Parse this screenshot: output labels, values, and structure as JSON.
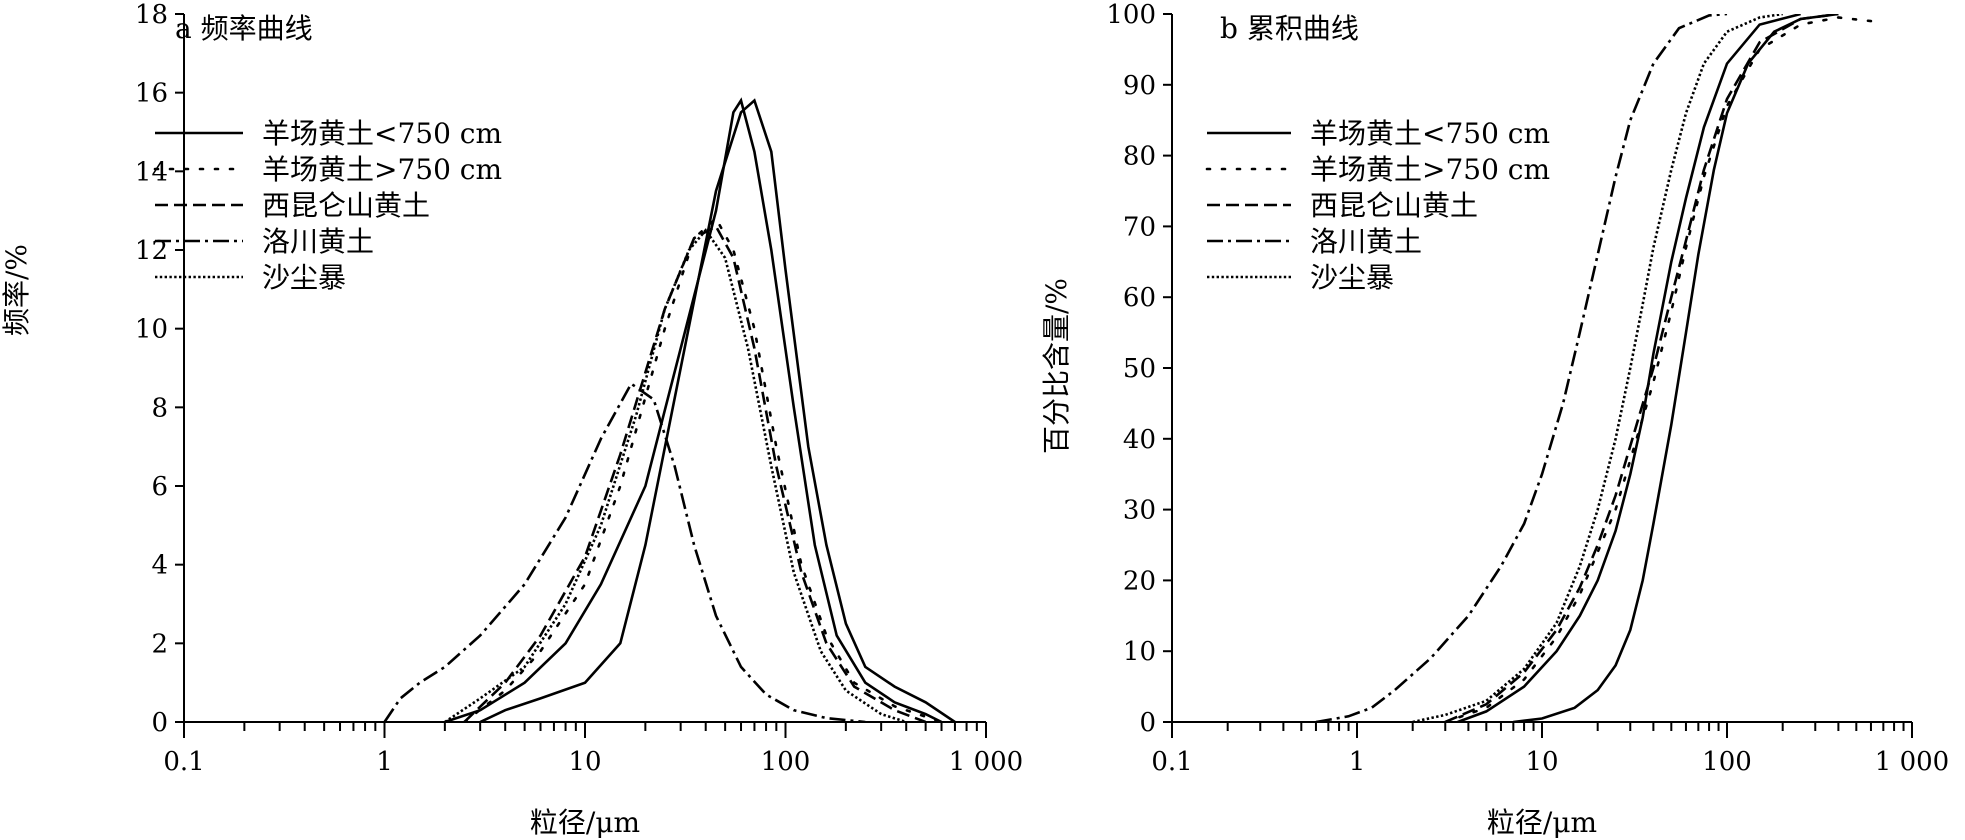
{
  "chart_data": [
    {
      "type": "line",
      "panel": "a",
      "title": "a 频率曲线",
      "xlabel": "粒径/μm",
      "ylabel": "频率/%",
      "xscale": "log",
      "xlim": [
        0.1,
        1000
      ],
      "ylim": [
        0,
        18
      ],
      "xticks": [
        0.1,
        1,
        10,
        100,
        1000
      ],
      "xtick_labels": [
        "0.1",
        "1",
        "10",
        "100",
        "1 000"
      ],
      "yticks": [
        0,
        2,
        4,
        6,
        8,
        10,
        12,
        14,
        16,
        18
      ],
      "ytick_labels": [
        "0",
        "2",
        "4",
        "6",
        "8",
        "10",
        "12",
        "14",
        "16",
        "18"
      ],
      "legend_position": "top-left",
      "series": [
        {
          "name": "羊场黄土<750 cm",
          "style": "solid",
          "points": [
            [
              3,
              0
            ],
            [
              4,
              0.3
            ],
            [
              6,
              0.6
            ],
            [
              10,
              1.0
            ],
            [
              15,
              2.0
            ],
            [
              20,
              4.5
            ],
            [
              30,
              9.0
            ],
            [
              45,
              13.5
            ],
            [
              60,
              15.5
            ],
            [
              70,
              15.8
            ],
            [
              85,
              14.5
            ],
            [
              100,
              11.5
            ],
            [
              130,
              7.0
            ],
            [
              160,
              4.5
            ],
            [
              200,
              2.5
            ],
            [
              250,
              1.4
            ],
            [
              350,
              0.9
            ],
            [
              500,
              0.5
            ],
            [
              700,
              0.0
            ]
          ]
        },
        {
          "name": "羊场黄土<750 cm",
          "style": "solid",
          "points": [
            [
              2,
              0
            ],
            [
              3,
              0.3
            ],
            [
              5,
              1.0
            ],
            [
              8,
              2.0
            ],
            [
              12,
              3.5
            ],
            [
              20,
              6.0
            ],
            [
              30,
              9.5
            ],
            [
              45,
              13.0
            ],
            [
              55,
              15.5
            ],
            [
              60,
              15.8
            ],
            [
              70,
              14.5
            ],
            [
              85,
              12.0
            ],
            [
              110,
              8.0
            ],
            [
              140,
              4.5
            ],
            [
              180,
              2.2
            ],
            [
              250,
              1.0
            ],
            [
              350,
              0.5
            ],
            [
              500,
              0.2
            ],
            [
              600,
              0.0
            ]
          ]
        },
        {
          "name": "羊场黄土>750 cm",
          "style": "dotted",
          "points": [
            [
              2.5,
              0
            ],
            [
              4,
              0.8
            ],
            [
              6,
              1.8
            ],
            [
              10,
              3.5
            ],
            [
              15,
              6.0
            ],
            [
              25,
              10.0
            ],
            [
              35,
              12.3
            ],
            [
              45,
              12.8
            ],
            [
              55,
              12.0
            ],
            [
              70,
              10.0
            ],
            [
              90,
              7.0
            ],
            [
              120,
              4.0
            ],
            [
              160,
              2.2
            ],
            [
              220,
              1.0
            ],
            [
              350,
              0.4
            ],
            [
              600,
              0.0
            ]
          ]
        },
        {
          "name": "西昆仑山黄土",
          "style": "dashed",
          "points": [
            [
              2.5,
              0
            ],
            [
              4,
              1.0
            ],
            [
              6,
              2.2
            ],
            [
              10,
              4.2
            ],
            [
              15,
              6.8
            ],
            [
              25,
              10.5
            ],
            [
              35,
              12.3
            ],
            [
              45,
              12.6
            ],
            [
              55,
              11.8
            ],
            [
              70,
              9.5
            ],
            [
              90,
              6.5
            ],
            [
              120,
              3.8
            ],
            [
              160,
              2.0
            ],
            [
              220,
              0.9
            ],
            [
              350,
              0.3
            ],
            [
              500,
              0.0
            ]
          ]
        },
        {
          "name": "洛川黄土",
          "style": "dashdot",
          "points": [
            [
              1,
              0
            ],
            [
              1.2,
              0.6
            ],
            [
              1.5,
              1.0
            ],
            [
              2,
              1.4
            ],
            [
              3,
              2.2
            ],
            [
              5,
              3.5
            ],
            [
              8,
              5.2
            ],
            [
              12,
              7.2
            ],
            [
              17,
              8.6
            ],
            [
              22,
              8.2
            ],
            [
              28,
              6.5
            ],
            [
              35,
              4.5
            ],
            [
              45,
              2.7
            ],
            [
              60,
              1.4
            ],
            [
              80,
              0.7
            ],
            [
              110,
              0.3
            ],
            [
              160,
              0.1
            ],
            [
              250,
              0.0
            ]
          ]
        },
        {
          "name": "沙尘暴",
          "style": "densedot",
          "points": [
            [
              2,
              0
            ],
            [
              3,
              0.6
            ],
            [
              5,
              1.4
            ],
            [
              8,
              3.0
            ],
            [
              12,
              5.0
            ],
            [
              18,
              7.8
            ],
            [
              25,
              10.5
            ],
            [
              33,
              12.0
            ],
            [
              40,
              12.5
            ],
            [
              50,
              11.8
            ],
            [
              65,
              9.5
            ],
            [
              85,
              6.5
            ],
            [
              110,
              3.8
            ],
            [
              150,
              1.8
            ],
            [
              200,
              0.8
            ],
            [
              300,
              0.2
            ],
            [
              400,
              0.0
            ]
          ]
        }
      ]
    },
    {
      "type": "line",
      "panel": "b",
      "title": "b 累积曲线",
      "xlabel": "粒径/μm",
      "ylabel": "百分比含量/%",
      "xscale": "log",
      "xlim": [
        0.1,
        1000
      ],
      "ylim": [
        0,
        100
      ],
      "xticks": [
        0.1,
        1,
        10,
        100,
        1000
      ],
      "xtick_labels": [
        "0.1",
        "1",
        "10",
        "100",
        "1 000"
      ],
      "yticks": [
        0,
        10,
        20,
        30,
        40,
        50,
        60,
        70,
        80,
        90,
        100
      ],
      "ytick_labels": [
        "0",
        "10",
        "20",
        "30",
        "40",
        "50",
        "60",
        "70",
        "80",
        "90",
        "100"
      ],
      "legend_position": "top-left",
      "series": [
        {
          "name": "羊场黄土<750 cm",
          "style": "solid",
          "points": [
            [
              7,
              0
            ],
            [
              10,
              0.5
            ],
            [
              15,
              2.0
            ],
            [
              20,
              4.5
            ],
            [
              25,
              8.0
            ],
            [
              30,
              13.0
            ],
            [
              35,
              20.0
            ],
            [
              40,
              28.0
            ],
            [
              50,
              42.0
            ],
            [
              60,
              55.0
            ],
            [
              70,
              66.0
            ],
            [
              85,
              78.0
            ],
            [
              100,
              86.0
            ],
            [
              130,
              93.0
            ],
            [
              180,
              97.5
            ],
            [
              250,
              99.3
            ],
            [
              400,
              100
            ]
          ]
        },
        {
          "name": "羊场黄土<750 cm",
          "style": "solid",
          "points": [
            [
              3.5,
              0
            ],
            [
              5,
              1.5
            ],
            [
              8,
              5.0
            ],
            [
              12,
              10.0
            ],
            [
              16,
              15.0
            ],
            [
              20,
              20.0
            ],
            [
              25,
              27.0
            ],
            [
              30,
              35.0
            ],
            [
              35,
              43.0
            ],
            [
              40,
              52.0
            ],
            [
              50,
              65.0
            ],
            [
              60,
              74.0
            ],
            [
              75,
              84.0
            ],
            [
              100,
              93.0
            ],
            [
              150,
              98.5
            ],
            [
              250,
              100
            ]
          ]
        },
        {
          "name": "羊场黄土>750 cm",
          "style": "dotted",
          "points": [
            [
              3,
              0
            ],
            [
              5,
              2.0
            ],
            [
              8,
              6.0
            ],
            [
              12,
              12.0
            ],
            [
              16,
              18.0
            ],
            [
              20,
              24.0
            ],
            [
              25,
              30.0
            ],
            [
              30,
              37.0
            ],
            [
              40,
              48.0
            ],
            [
              50,
              58.0
            ],
            [
              60,
              67.0
            ],
            [
              75,
              77.0
            ],
            [
              100,
              87.0
            ],
            [
              150,
              95.0
            ],
            [
              250,
              98.5
            ],
            [
              400,
              99.5
            ],
            [
              600,
              99.0
            ]
          ]
        },
        {
          "name": "西昆仑山黄土",
          "style": "dashed",
          "points": [
            [
              3,
              0
            ],
            [
              5,
              2.5
            ],
            [
              8,
              7.0
            ],
            [
              12,
              13.0
            ],
            [
              16,
              19.0
            ],
            [
              20,
              25.0
            ],
            [
              25,
              32.0
            ],
            [
              30,
              39.0
            ],
            [
              40,
              50.0
            ],
            [
              50,
              60.0
            ],
            [
              60,
              68.0
            ],
            [
              75,
              78.0
            ],
            [
              100,
              88.0
            ],
            [
              150,
              96.0
            ],
            [
              250,
              99.3
            ],
            [
              400,
              100
            ]
          ]
        },
        {
          "name": "洛川黄土",
          "style": "dashdot",
          "points": [
            [
              0.6,
              0
            ],
            [
              0.9,
              0.8
            ],
            [
              1.2,
              2.0
            ],
            [
              1.6,
              4.5
            ],
            [
              2.5,
              9.0
            ],
            [
              4,
              15.0
            ],
            [
              6,
              22.0
            ],
            [
              8,
              28.0
            ],
            [
              10,
              35.0
            ],
            [
              13,
              45.0
            ],
            [
              16,
              55.0
            ],
            [
              20,
              66.0
            ],
            [
              25,
              77.0
            ],
            [
              30,
              85.0
            ],
            [
              40,
              93.0
            ],
            [
              55,
              98.0
            ],
            [
              80,
              99.8
            ],
            [
              100,
              100
            ]
          ]
        },
        {
          "name": "沙尘暴",
          "style": "densedot",
          "points": [
            [
              2,
              0
            ],
            [
              3,
              1.0
            ],
            [
              5,
              3.0
            ],
            [
              8,
              7.5
            ],
            [
              12,
              14.0
            ],
            [
              16,
              22.0
            ],
            [
              20,
              30.0
            ],
            [
              25,
              40.0
            ],
            [
              30,
              50.0
            ],
            [
              35,
              59.0
            ],
            [
              40,
              67.0
            ],
            [
              50,
              78.0
            ],
            [
              60,
              86.0
            ],
            [
              75,
              93.0
            ],
            [
              100,
              97.5
            ],
            [
              150,
              99.5
            ],
            [
              200,
              100
            ]
          ]
        }
      ]
    }
  ]
}
